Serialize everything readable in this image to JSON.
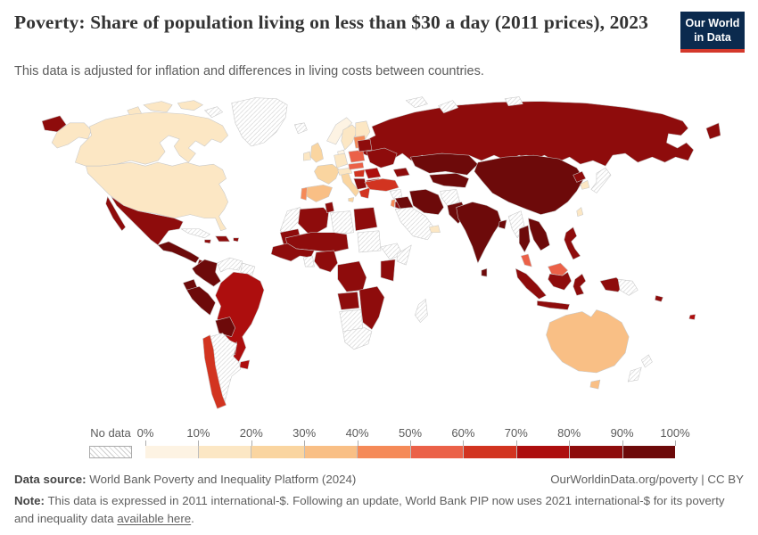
{
  "header": {
    "title": "Poverty: Share of population living on less than $30 a day (2011 prices), 2023",
    "subtitle": "This data is adjusted for inflation and differences in living costs between countries.",
    "logo": {
      "line1": "Our World",
      "line2": "in Data"
    },
    "logo_colors": {
      "background": "#0b2a4e",
      "underline": "#d4382b"
    }
  },
  "legend": {
    "no_data_label": "No data",
    "tick_labels": [
      "0%",
      "10%",
      "20%",
      "30%",
      "40%",
      "50%",
      "60%",
      "70%",
      "80%",
      "90%",
      "100%"
    ],
    "band_colors": [
      "#FDF3E3",
      "#FCE7C4",
      "#FAD5A0",
      "#F9BF85",
      "#F58A58",
      "#EB6148",
      "#D23420",
      "#AD0E0E",
      "#8E0C0C",
      "#6D0A0A"
    ]
  },
  "map": {
    "border_color": "#c8c8c8",
    "no_data_key": "nd",
    "fills": {
      "russia": 8,
      "russia_tip1": 8,
      "russia_tip2": 8,
      "chukotka": 8,
      "greenland": "nd",
      "iceland": "nd",
      "svalbard": "nd",
      "novaya_zemlya": "nd",
      "severnaya": "nd",
      "canada": 1,
      "usa": 1,
      "alaska": 1,
      "arctic1": 1,
      "arctic2": 1,
      "arctic3": 1,
      "arctic4": "nd",
      "arctic5": 1,
      "mexico": 8,
      "baja": 8,
      "central_america": 9,
      "panama_cr": 8,
      "cuba": "nd",
      "hispaniola": 8,
      "jamaica": 8,
      "puerto_rico": 8,
      "colombia": 9,
      "venezuela": "nd",
      "guyanas": "nd",
      "ecuador": 9,
      "peru": 9,
      "brazil": 7,
      "bolivia": 9,
      "paraguay": 8,
      "uruguay": 7,
      "chile": 6,
      "argentina": "nd",
      "norway": 0,
      "sweden": 1,
      "finland": 1,
      "denmark": 0,
      "uk": 2,
      "ireland": 1,
      "germany": 1,
      "france": 2,
      "swiss_austria": 1,
      "spain": 3,
      "portugal": 4,
      "italy": 2,
      "sicily": 2,
      "poland": 5,
      "baltics": 4,
      "czech_slovakia": 5,
      "hungary": 6,
      "romania": 7,
      "serbia_balkans": 8,
      "bulgaria": 7,
      "greece": 6,
      "ukraine": 8,
      "belarus": 8,
      "caucasus": 8,
      "turkey": 6,
      "syria": "nd",
      "iraq": 9,
      "iran": 9,
      "afghanistan": "nd",
      "pakistan": 9,
      "saudi_peninsula": "nd",
      "uae_oman": 1,
      "israel": 4,
      "jordan": 8,
      "morocco_wsahara": "nd",
      "algeria": 8,
      "tunisia": 8,
      "libya": "nd",
      "egypt": 8,
      "mauritania": 8,
      "sahel": 8,
      "west_africa_coast": 8,
      "ghana_gap": "nd",
      "nigeria_cameroon": 8,
      "sudan": "nd",
      "ethiopia": "nd",
      "somalia": "nd",
      "east_africa": 8,
      "drc": 8,
      "angola": 8,
      "zambia_zim_moz": 8,
      "namibia_botswana": "nd",
      "south_africa": "nd",
      "madagascar": "nd",
      "kazakhstan": 9,
      "central_asia": 9,
      "china": 9,
      "mongolia": 9,
      "india": 9,
      "nepal": "nd",
      "bangladesh": 9,
      "sri_lanka": 9,
      "north_korea": 8,
      "south_korea": 1,
      "japan": "nd",
      "taiwan": 1,
      "myanmar": "nd",
      "thailand": 9,
      "indochina": 9,
      "malaysia_pen": 5,
      "sumatra": 8,
      "borneo_my": 5,
      "borneo_id": 8,
      "java": 8,
      "sulawesi": 8,
      "philippines": 8,
      "new_guinea_w": 8,
      "new_guinea_e": "nd",
      "solomon": 8,
      "fiji": 7,
      "australia": 3,
      "tasmania": 3,
      "new_zealand_n": "nd",
      "new_zealand_s": "nd"
    }
  },
  "footer": {
    "source_label": "Data source:",
    "source_text": " World Bank Poverty and Inequality Platform (2024)",
    "attribution": "OurWorldinData.org/poverty | CC BY",
    "note_label": "Note:",
    "note_text": " This data is expressed in 2011 international-$. Following an update, World Bank PIP now uses 2021 international-$ for its poverty and inequality data ",
    "note_link": "available here",
    "note_suffix": "."
  }
}
